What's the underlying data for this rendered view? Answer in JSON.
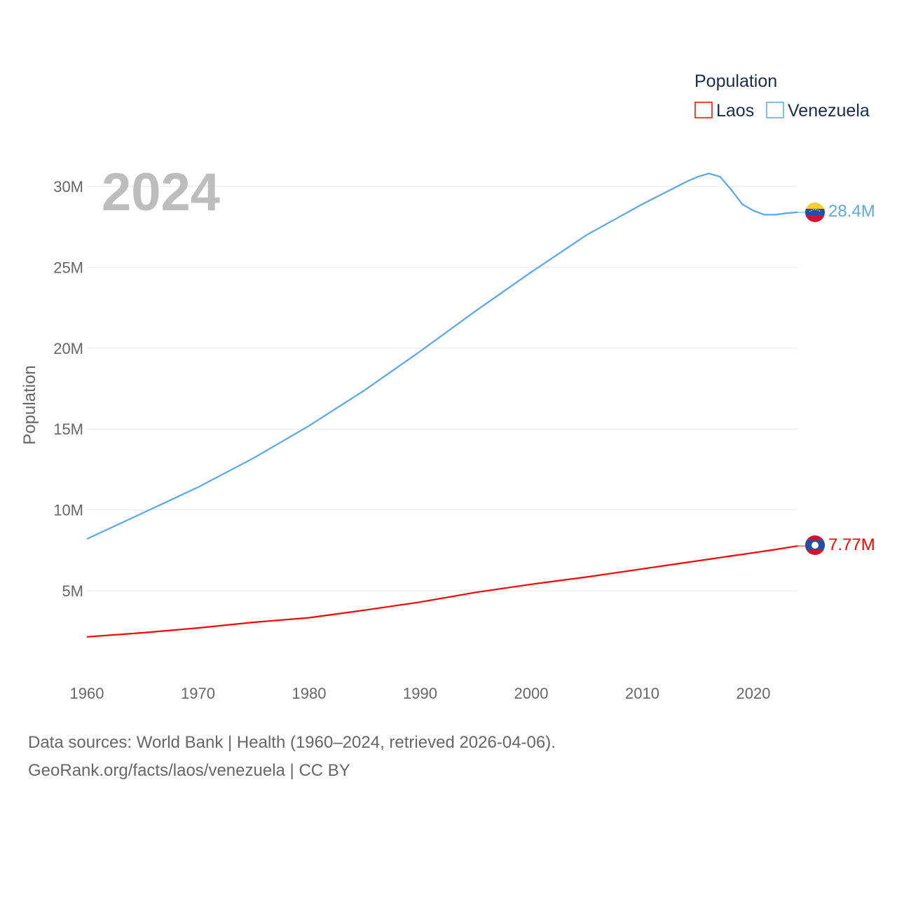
{
  "chart_data": {
    "type": "line",
    "title": "",
    "year_label": "2024",
    "xlabel": "",
    "ylabel": "Population",
    "xlim": [
      1960,
      2024
    ],
    "ylim": [
      0,
      32000000
    ],
    "x_ticks": [
      "1960",
      "1970",
      "1980",
      "1990",
      "2000",
      "2010",
      "2020"
    ],
    "y_ticks": [
      {
        "v": 5000000,
        "label": "5M"
      },
      {
        "v": 10000000,
        "label": "10M"
      },
      {
        "v": 15000000,
        "label": "15M"
      },
      {
        "v": 20000000,
        "label": "20M"
      },
      {
        "v": 25000000,
        "label": "25M"
      },
      {
        "v": 30000000,
        "label": "30M"
      }
    ],
    "grid": true,
    "legend": {
      "title": "Population",
      "placement": "top-right"
    },
    "x": [
      1960,
      1965,
      1970,
      1975,
      1980,
      1985,
      1990,
      1995,
      2000,
      2005,
      2010,
      2014,
      2015,
      2016,
      2017,
      2018,
      2019,
      2020,
      2021,
      2022,
      2023,
      2024
    ],
    "series": [
      {
        "name": "Laos",
        "color": "#ff0000",
        "end_label": "7.77M",
        "values": [
          2.15,
          2.4,
          2.7,
          3.05,
          3.33,
          3.8,
          4.3,
          4.9,
          5.4,
          5.85,
          6.35,
          6.75,
          6.85,
          6.95,
          7.05,
          7.15,
          7.25,
          7.35,
          7.45,
          7.55,
          7.66,
          7.77
        ]
      },
      {
        "name": "Venezuela",
        "color": "#5ba7eb",
        "end_label": "28.4M",
        "values": [
          8.2,
          9.8,
          11.4,
          13.2,
          15.2,
          17.4,
          19.8,
          22.3,
          24.7,
          27.0,
          28.9,
          30.3,
          30.6,
          30.8,
          30.6,
          29.8,
          28.9,
          28.5,
          28.25,
          28.25,
          28.35,
          28.4
        ]
      }
    ]
  },
  "footer": {
    "line1": "Data sources: World Bank | Health (1960–2024, retrieved 2026-04-06).",
    "line2": "GeoRank.org/facts/laos/venezuela | CC BY"
  }
}
